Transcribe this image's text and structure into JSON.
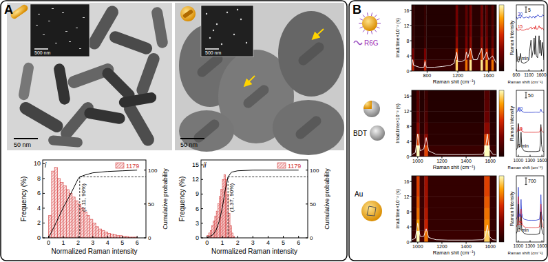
{
  "chart_data": [
    {
      "type": "histogram",
      "title": "i",
      "x_label": "Normalized Raman intensity",
      "y_label": "Frequency (%)",
      "y2_label": "Cumulative probability",
      "xlim": [
        -0.4,
        6.6
      ],
      "xticks": [
        0,
        1,
        2,
        3,
        4,
        5,
        6
      ],
      "ylim": [
        0,
        10.5
      ],
      "yticks": [
        0,
        2,
        4,
        6,
        8,
        10
      ],
      "y2lim": [
        0,
        115
      ],
      "y2ticks": [
        0,
        50,
        100
      ],
      "legend": "upper right",
      "series": [
        {
          "name": "1179",
          "type": "histogram",
          "color": "#d43c3c",
          "bins": [
            0,
            0.2,
            0.4,
            0.6,
            0.8,
            1,
            1.2,
            1.4,
            1.6,
            1.8,
            2,
            2.2,
            2.4,
            2.6,
            2.8,
            3,
            3.2,
            3.4,
            3.6,
            3.8,
            4,
            4.2,
            4.4,
            4.6,
            4.8,
            5,
            5.2,
            5.4,
            5.6,
            5.8,
            6
          ],
          "values": [
            3,
            9,
            9.5,
            8,
            7.5,
            7,
            6.5,
            6,
            5.5,
            5,
            4.5,
            4,
            3.5,
            3,
            2.5,
            2,
            1.5,
            1.2,
            1,
            0.8,
            0.6,
            0.5,
            0.4,
            0.3,
            0.3,
            0.2,
            0.2,
            0.1,
            0.1,
            0.1
          ]
        },
        {
          "type": "line",
          "axis": "y2",
          "color": "#000000",
          "x": [
            0,
            0.5,
            1,
            1.5,
            2,
            2.11,
            2.5,
            3,
            4,
            5,
            6
          ],
          "values": [
            0,
            22,
            45,
            65,
            87,
            90,
            93,
            96,
            98,
            99,
            100
          ]
        }
      ],
      "annotations": [
        {
          "text": "(2.11, 90%)",
          "x": 2.11,
          "y": 90,
          "axis": "y2"
        }
      ]
    },
    {
      "type": "histogram",
      "title": "ii",
      "x_label": "Normalized Raman intensity",
      "y_label": "Frequency (%)",
      "y2_label": "Cumulative probability",
      "xlim": [
        -0.4,
        6.6
      ],
      "xticks": [
        0,
        1,
        2,
        3,
        4,
        5,
        6
      ],
      "ylim": [
        0,
        16
      ],
      "yticks": [
        0,
        3,
        6,
        9,
        12,
        15
      ],
      "y2lim": [
        0,
        115
      ],
      "y2ticks": [
        0,
        50,
        100
      ],
      "legend": "upper right",
      "series": [
        {
          "name": "1179",
          "type": "histogram",
          "color": "#d43c3c",
          "bins": [
            0,
            0.1,
            0.2,
            0.3,
            0.4,
            0.5,
            0.6,
            0.7,
            0.8,
            0.9,
            1,
            1.1,
            1.2,
            1.3,
            1.4,
            1.5,
            1.6,
            1.7,
            1.8
          ],
          "values": [
            0.5,
            1,
            1.5,
            2.5,
            3.5,
            4.5,
            5.5,
            7,
            8.5,
            10,
            12,
            13,
            12,
            9,
            5,
            2.5,
            1,
            0.3
          ]
        },
        {
          "type": "line",
          "axis": "y2",
          "color": "#000000",
          "x": [
            0,
            0.4,
            0.6,
            0.8,
            1,
            1.2,
            1.37,
            1.6,
            2,
            3,
            6
          ],
          "values": [
            0,
            5,
            12,
            25,
            45,
            72,
            90,
            97,
            99,
            100,
            100
          ]
        }
      ],
      "annotations": [
        {
          "text": "(1.37, 90%)",
          "x": 1.37,
          "y": 90,
          "axis": "y2"
        }
      ]
    },
    {
      "type": "heatmap",
      "x_label": "Raman shit (cm⁻¹)",
      "y_label": "Irrad.time×10⁻² (s)",
      "xlim": [
        600,
        1700
      ],
      "xticks": [
        800,
        1200,
        1600
      ],
      "ylim": [
        0,
        17.5
      ],
      "yticks": [
        0,
        4,
        8,
        12,
        16
      ],
      "x_bins": [
        600,
        630,
        760,
        790,
        1170,
        1200,
        1295,
        1325,
        1350,
        1380,
        1495,
        1525,
        1560,
        1590,
        1635,
        1665,
        1700
      ],
      "y_bins": [
        0,
        3,
        6,
        9,
        12,
        15,
        17.5
      ],
      "cells": [
        [
          0.5,
          0.1,
          0.5,
          0.1,
          0.9,
          0.15,
          0.7,
          0.2,
          0.95,
          0.15,
          0.95,
          0.2,
          0.85,
          0.15,
          0.7,
          0.1
        ],
        [
          0.3,
          0.05,
          0.3,
          0.05,
          0.6,
          0.1,
          0.45,
          0.1,
          0.6,
          0.1,
          0.6,
          0.1,
          0.55,
          0.1,
          0.4,
          0.05
        ],
        [
          0.1,
          0.03,
          0.1,
          0.03,
          0.35,
          0.05,
          0.3,
          0.05,
          0.35,
          0.05,
          0.35,
          0.05,
          0.3,
          0.05,
          0.25,
          0.03
        ],
        [
          0.08,
          0.03,
          0.08,
          0.03,
          0.3,
          0.05,
          0.25,
          0.05,
          0.3,
          0.05,
          0.3,
          0.05,
          0.25,
          0.05,
          0.2,
          0.03
        ],
        [
          0.08,
          0.03,
          0.08,
          0.03,
          0.28,
          0.05,
          0.22,
          0.05,
          0.28,
          0.05,
          0.28,
          0.05,
          0.22,
          0.05,
          0.18,
          0.03
        ],
        [
          0.08,
          0.03,
          0.08,
          0.03,
          0.28,
          0.05,
          0.22,
          0.05,
          0.28,
          0.05,
          0.28,
          0.05,
          0.22,
          0.05,
          0.18,
          0.03
        ]
      ],
      "clim": [
        0,
        1
      ],
      "spectrum": {
        "color": "#ffffff",
        "x": [
          600,
          612,
          625,
          700,
          760,
          773,
          790,
          900,
          1000,
          1100,
          1150,
          1185,
          1200,
          1250,
          1295,
          1310,
          1330,
          1363,
          1400,
          1450,
          1509,
          1530,
          1575,
          1600,
          1650,
          1700
        ],
        "values": [
          1.5,
          3,
          1.5,
          1,
          1,
          2.5,
          1,
          1,
          1.2,
          1.5,
          2,
          5,
          2.5,
          2.5,
          3,
          5,
          3.5,
          6,
          3,
          3,
          6,
          3,
          5,
          3,
          4,
          2
        ]
      }
    },
    {
      "type": "line",
      "x_label": "Raman shift (cm⁻¹)",
      "y_label": "Raman Intensity",
      "tick_labels": "x",
      "xlim": [
        600,
        1700
      ],
      "xticks": [
        600,
        1100,
        1600
      ],
      "ylim": [
        0,
        60
      ],
      "scale_bar": 5,
      "x": [
        600,
        612,
        640,
        700,
        773,
        800,
        900,
        1000,
        1100,
        1130,
        1185,
        1220,
        1280,
        1310,
        1340,
        1363,
        1400,
        1450,
        1509,
        1540,
        1575,
        1600,
        1650,
        1700
      ],
      "series": [
        {
          "name": "30",
          "color": "#2233cc",
          "values": [
            48,
            49,
            47,
            49,
            48,
            50,
            48,
            49,
            48,
            50,
            49,
            48,
            50,
            49,
            48,
            50,
            49,
            51,
            50,
            49,
            50,
            49,
            51,
            50
          ]
        },
        {
          "name": "15",
          "color": "#e02020",
          "values": [
            37,
            39,
            37,
            37,
            38,
            37,
            37,
            38,
            38,
            39,
            40,
            38,
            39,
            40,
            38,
            41,
            38,
            38,
            41,
            39,
            40,
            38,
            39,
            37
          ]
        },
        {
          "name": "0 min",
          "color": "#000000",
          "values": [
            8,
            20,
            9,
            8,
            16,
            8,
            7,
            8,
            10,
            18,
            28,
            12,
            20,
            30,
            15,
            32,
            14,
            12,
            32,
            16,
            28,
            14,
            26,
            10
          ]
        }
      ]
    },
    {
      "type": "heatmap",
      "x_label": "Raman shit (cm⁻¹)",
      "y_label": "Irrad.time×10⁻² (s)",
      "xlim": [
        950,
        1650
      ],
      "xticks": [
        1000,
        1200,
        1400,
        1600
      ],
      "ylim": [
        0,
        17.5
      ],
      "yticks": [
        0,
        4,
        8,
        12,
        16
      ],
      "x_bins": [
        950,
        990,
        1015,
        1055,
        1085,
        1550,
        1595,
        1650
      ],
      "y_bins": [
        0,
        3,
        6,
        9,
        12,
        15,
        17.5
      ],
      "cells": [
        [
          0.1,
          1.0,
          0.15,
          0.6,
          0.1,
          1.0,
          0.1
        ],
        [
          0.05,
          0.6,
          0.1,
          0.35,
          0.05,
          0.6,
          0.05
        ],
        [
          0.05,
          0.35,
          0.05,
          0.2,
          0.05,
          0.35,
          0.05
        ],
        [
          0.03,
          0.25,
          0.05,
          0.15,
          0.03,
          0.25,
          0.03
        ],
        [
          0.03,
          0.2,
          0.03,
          0.12,
          0.03,
          0.2,
          0.03
        ],
        [
          0.03,
          0.18,
          0.03,
          0.1,
          0.03,
          0.18,
          0.03
        ]
      ],
      "clim": [
        0,
        1
      ],
      "spectrum": {
        "color": "#ffffff",
        "x": [
          950,
          980,
          1000,
          1020,
          1050,
          1070,
          1090,
          1150,
          1250,
          1350,
          1450,
          1540,
          1560,
          1575,
          1590,
          1620,
          1650
        ],
        "values": [
          0.5,
          1,
          6,
          1.5,
          2,
          5,
          1.5,
          0.6,
          0.5,
          0.5,
          0.5,
          0.6,
          2,
          6,
          2,
          0.6,
          0.5
        ]
      }
    },
    {
      "type": "line",
      "x_label": "Raman shift (cm⁻¹)",
      "y_label": "Raman Intensity",
      "tick_labels": "x",
      "xlim": [
        950,
        1650
      ],
      "xticks": [
        1000,
        1300,
        1600
      ],
      "ylim": [
        0,
        600
      ],
      "scale_bar": 50,
      "x": [
        950,
        980,
        1000,
        1020,
        1050,
        1070,
        1090,
        1150,
        1250,
        1350,
        1450,
        1540,
        1560,
        1575,
        1590,
        1620,
        1650
      ],
      "series": [
        {
          "name": "30",
          "color": "#2233cc",
          "values": [
            400,
            410,
            440,
            412,
            410,
            425,
            410,
            400,
            400,
            400,
            402,
            400,
            410,
            430,
            410,
            402,
            400
          ]
        },
        {
          "name": "15",
          "color": "#e02020",
          "values": [
            220,
            230,
            290,
            235,
            235,
            260,
            230,
            220,
            220,
            220,
            220,
            222,
            240,
            270,
            235,
            222,
            220
          ]
        },
        {
          "name": "0 min",
          "color": "#000000",
          "values": [
            60,
            80,
            300,
            90,
            90,
            220,
            80,
            50,
            45,
            45,
            45,
            50,
            120,
            290,
            110,
            50,
            45
          ]
        }
      ]
    },
    {
      "type": "heatmap",
      "x_label": "Raman shit (cm⁻¹)",
      "y_label": "Irrad.time×10⁻² (s)",
      "xlim": [
        950,
        1650
      ],
      "xticks": [
        1000,
        1200,
        1400,
        1600
      ],
      "ylim": [
        0,
        17.5
      ],
      "yticks": [
        0,
        4,
        8,
        12,
        16
      ],
      "x_bins": [
        950,
        990,
        1015,
        1055,
        1085,
        1550,
        1595,
        1650
      ],
      "y_bins": [
        0,
        3,
        6,
        9,
        12,
        15,
        17.5
      ],
      "cells": [
        [
          0.1,
          1.0,
          0.15,
          0.7,
          0.1,
          0.9,
          0.1
        ],
        [
          0.08,
          0.8,
          0.1,
          0.5,
          0.08,
          0.75,
          0.08
        ],
        [
          0.08,
          0.7,
          0.1,
          0.45,
          0.08,
          0.7,
          0.08
        ],
        [
          0.08,
          0.65,
          0.1,
          0.4,
          0.08,
          0.65,
          0.08
        ],
        [
          0.08,
          0.6,
          0.1,
          0.4,
          0.08,
          0.6,
          0.08
        ],
        [
          0.08,
          0.6,
          0.1,
          0.4,
          0.08,
          0.6,
          0.08
        ]
      ],
      "clim": [
        0,
        1
      ],
      "spectrum": {
        "color": "#ffffff",
        "x": [
          950,
          980,
          1000,
          1020,
          1050,
          1070,
          1090,
          1150,
          1250,
          1350,
          1450,
          1540,
          1560,
          1575,
          1590,
          1620,
          1650
        ],
        "values": [
          0.5,
          1,
          5,
          1.5,
          1.5,
          3.5,
          1.2,
          0.6,
          0.5,
          0.5,
          0.5,
          0.6,
          1.5,
          4.5,
          1.5,
          0.6,
          0.5
        ]
      }
    },
    {
      "type": "line",
      "x_label": "Raman shift (cm⁻¹)",
      "y_label": "Raman Intensity",
      "tick_labels": "x",
      "xlim": [
        950,
        1650
      ],
      "xticks": [
        1000,
        1300,
        1600
      ],
      "ylim": [
        0,
        7000
      ],
      "scale_bar": 700,
      "x": [
        950,
        980,
        1000,
        1020,
        1050,
        1070,
        1090,
        1150,
        1250,
        1350,
        1450,
        1540,
        1560,
        1575,
        1590,
        1620,
        1650
      ],
      "series": [
        {
          "name": "30",
          "color": "#2233cc",
          "values": [
            2400,
            2700,
            5800,
            3000,
            2800,
            4500,
            2700,
            2400,
            2300,
            2300,
            2300,
            2400,
            3200,
            5000,
            3000,
            2400,
            2300
          ]
        },
        {
          "name": "15",
          "color": "#e02020",
          "values": [
            1600,
            1900,
            4800,
            2200,
            2000,
            3500,
            1900,
            1600,
            1500,
            1500,
            1500,
            1600,
            2400,
            4000,
            2200,
            1600,
            1500
          ]
        },
        {
          "name": "0 min",
          "color": "#000000",
          "values": [
            900,
            1200,
            4000,
            1500,
            1300,
            2800,
            1200,
            900,
            800,
            800,
            800,
            900,
            1700,
            3200,
            1500,
            900,
            800
          ]
        }
      ]
    }
  ],
  "figure": {
    "panel_labels": [
      "A",
      "B"
    ],
    "image_scale_bars": [
      "50 nm",
      "500 nm",
      "50 nm",
      "500 nm"
    ],
    "samples": [
      "R6G",
      "BDT",
      "Au"
    ]
  }
}
